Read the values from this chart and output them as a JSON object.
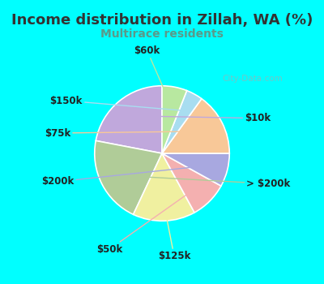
{
  "title": "Income distribution in Zillah, WA (%)",
  "subtitle": "Multirace residents",
  "title_color": "#333333",
  "subtitle_color": "#5a9a8a",
  "background_outer": "#00ffff",
  "background_inner_color": "#d8ede4",
  "watermark": "City-Data.com",
  "labels": [
    "$10k",
    "> $200k",
    "$125k",
    "$50k",
    "$200k",
    "$75k",
    "$150k",
    "$60k"
  ],
  "values": [
    22,
    21,
    15,
    9,
    8,
    15,
    4,
    6
  ],
  "colors": [
    "#c0a8dc",
    "#b0cc98",
    "#f0f0a0",
    "#f4b0b0",
    "#a8a8e0",
    "#f8c898",
    "#a8ddf0",
    "#b8e8a0"
  ],
  "startangle": 90,
  "label_fontsize": 8.5,
  "title_fontsize": 13,
  "subtitle_fontsize": 10,
  "label_color": "#222222"
}
